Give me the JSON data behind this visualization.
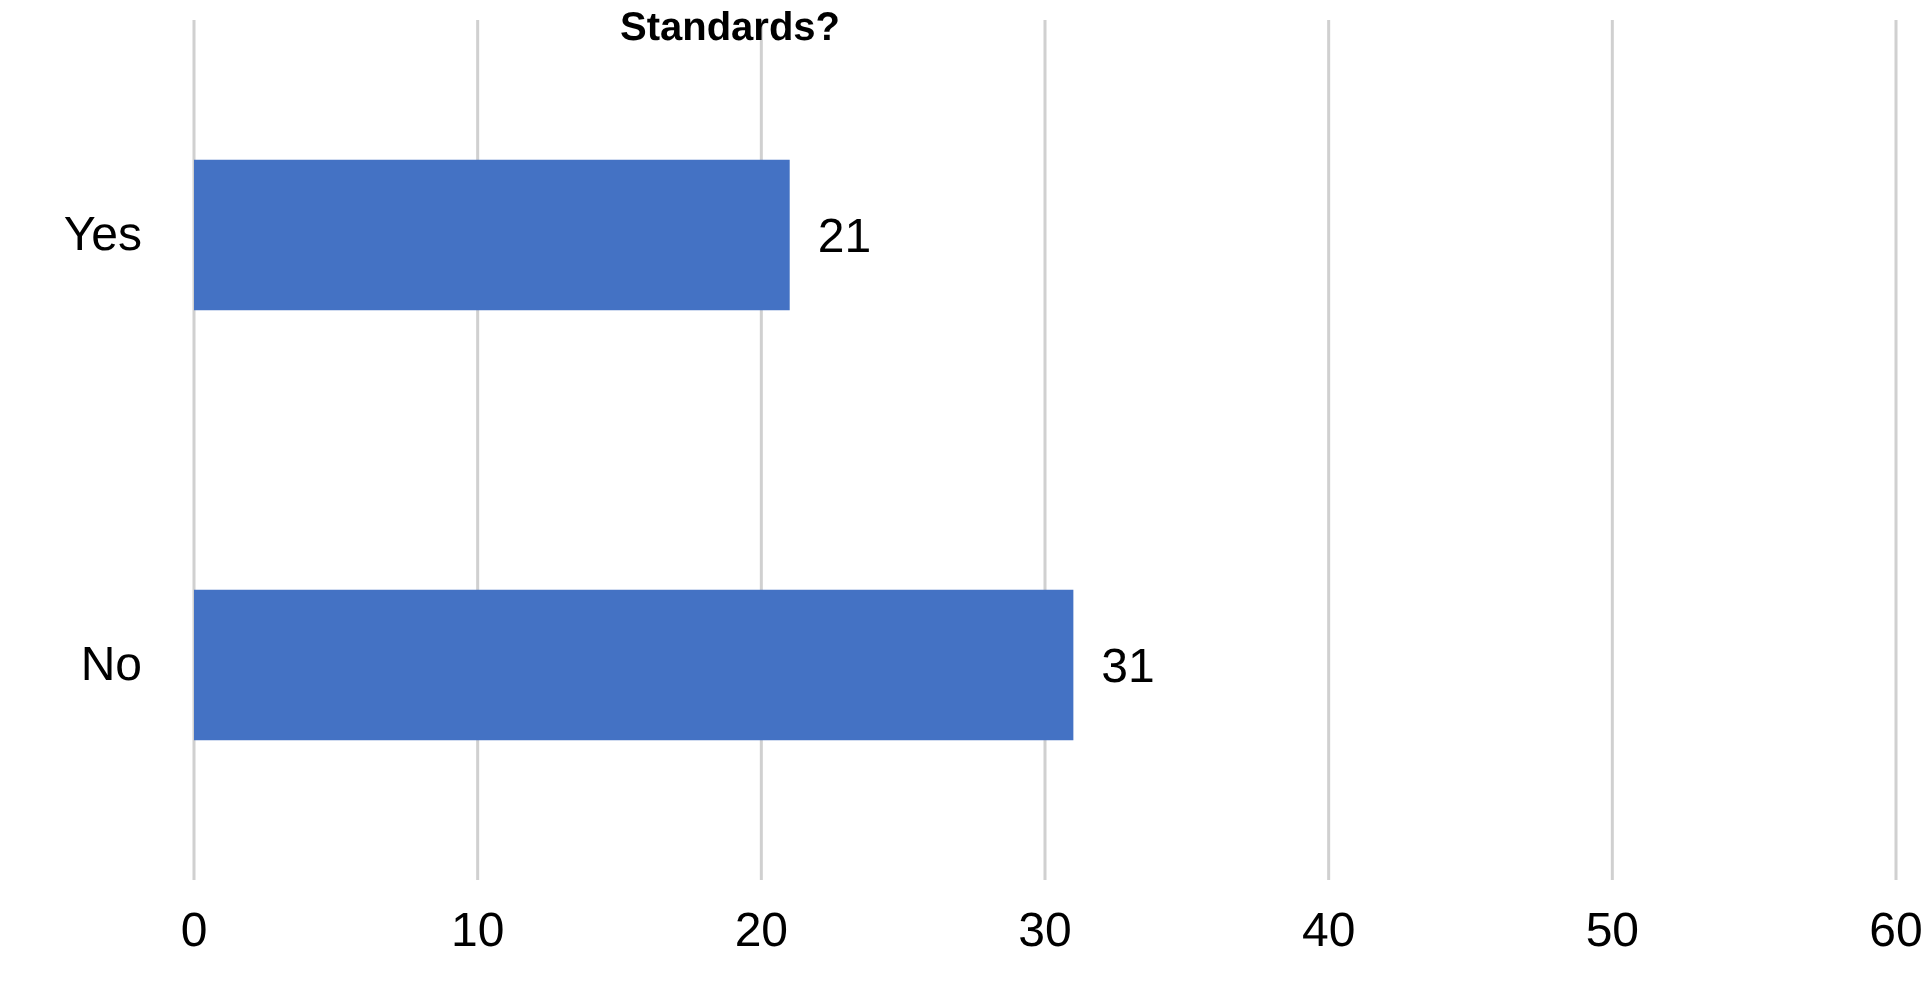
{
  "chart_data": {
    "type": "bar",
    "orientation": "horizontal",
    "title": "Standards?",
    "categories": [
      "Yes",
      "No"
    ],
    "values": [
      21,
      31
    ],
    "color": "#4472c4",
    "xlim": [
      0,
      60
    ],
    "xticks": [
      0,
      10,
      20,
      30,
      40,
      50,
      60
    ],
    "grid": "x",
    "data_labels": true
  }
}
